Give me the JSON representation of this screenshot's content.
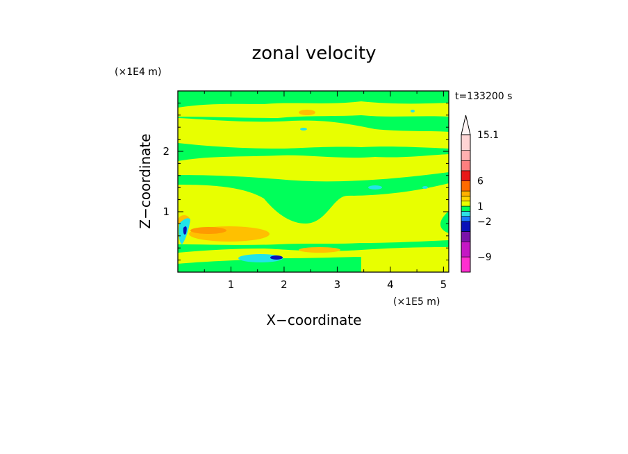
{
  "chart_data": {
    "type": "heatmap",
    "title": "zonal velocity",
    "xlabel": "X−coordinate",
    "ylabel": "Z−coordinate",
    "x_unit": "(×1E5 m)",
    "y_unit": "(×1E4 m)",
    "time_label": "t=133200 s",
    "xlim": [
      0,
      5.1
    ],
    "ylim": [
      0,
      3.0
    ],
    "x_ticks": [
      1,
      2,
      3,
      4,
      5
    ],
    "x_tick_labels": [
      "1",
      "2",
      "3",
      "4",
      "5"
    ],
    "y_ticks": [
      1,
      2
    ],
    "y_tick_labels": [
      "1",
      "2"
    ],
    "colorbar": {
      "levels": [
        -12,
        -9,
        -6,
        -4,
        -2,
        -1,
        0,
        1,
        2,
        3,
        4,
        6,
        8,
        10,
        12,
        15.1
      ],
      "colors": [
        "#ff2fd0",
        "#c418c4",
        "#7a12aa",
        "#0a10b8",
        "#1b78ff",
        "#2ee0e6",
        "#00ff5a",
        "#e8ff00",
        "#ffd400",
        "#ffb000",
        "#ff6a00",
        "#e81818",
        "#ff7f7f",
        "#ffb0b0",
        "#ffd4d4"
      ],
      "tick_values": [
        15.1,
        6,
        1,
        -2,
        -9
      ],
      "tick_labels": [
        "15.1",
        "6",
        "1",
        "−2",
        "−9"
      ]
    },
    "colors": {
      "green": "#00ff5a",
      "yellow": "#e8ff00",
      "orange": "#ffc000",
      "cyan": "#22e4e8",
      "blue": "#0a10b8"
    }
  }
}
